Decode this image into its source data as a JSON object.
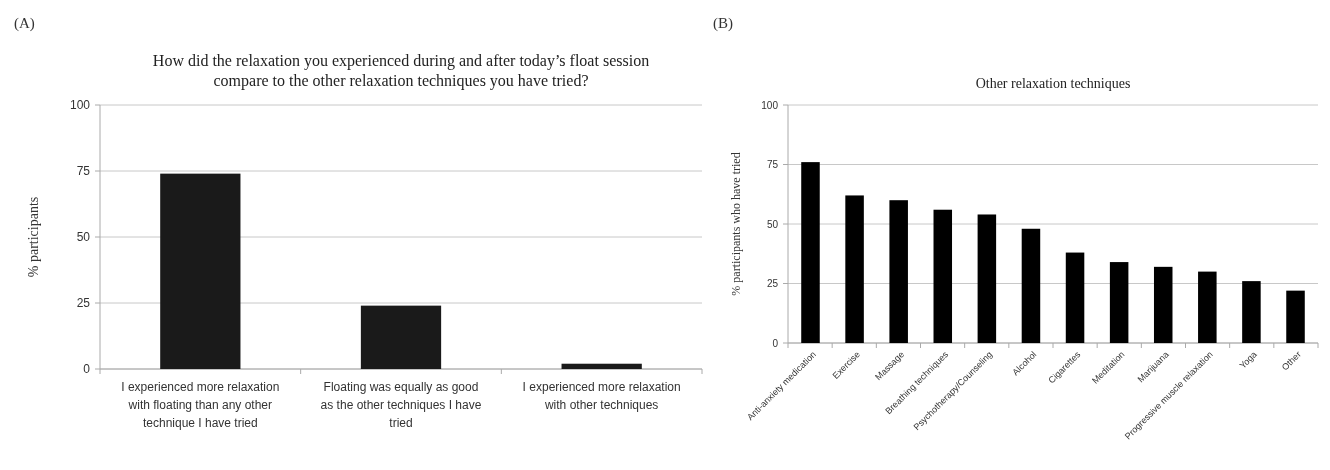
{
  "chart_data": [
    {
      "type": "bar",
      "title": "How did the relaxation you experienced during and after today’s float session compare to the other relaxation techniques you have tried?",
      "ylabel": "% participants",
      "annotations": [
        "(A)"
      ],
      "categories": [
        "I experienced more relaxation with floating than any other technique I have tried",
        "Floating was equally as good as the other techniques I have tried",
        "I experienced more relaxation with other techniques"
      ],
      "values": [
        74,
        24,
        2
      ],
      "color": "#1a1a1a",
      "ylim": [
        0,
        100
      ],
      "yticks": [
        0,
        25,
        50,
        75,
        100
      ],
      "grid": "y"
    },
    {
      "type": "bar",
      "title": "Other relaxation techniques",
      "ylabel": "% participants who have tried",
      "annotations": [
        "(B)"
      ],
      "categories": [
        "Anti-anxiety medication",
        "Exercise",
        "Massage",
        "Breathing techniques",
        "Psychotherapy/Counseling",
        "Alcohol",
        "Cigarettes",
        "Meditation",
        "Marijuana",
        "Progressive muscle relaxation",
        "Yoga",
        "Other"
      ],
      "values": [
        76,
        62,
        60,
        56,
        54,
        48,
        38,
        34,
        32,
        30,
        26,
        22
      ],
      "color": "#000000",
      "ylim": [
        0,
        100
      ],
      "yticks": [
        0,
        25,
        50,
        75,
        100
      ],
      "grid": "y"
    }
  ]
}
